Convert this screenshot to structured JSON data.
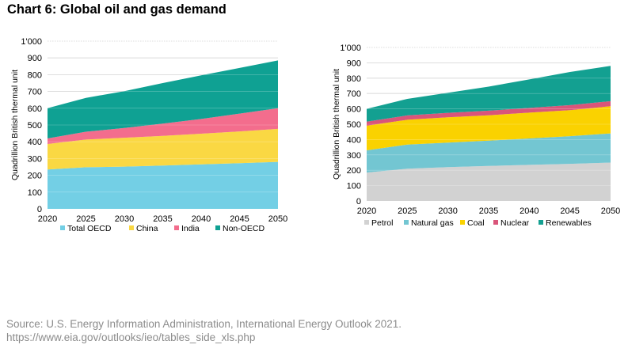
{
  "page_title": "Chart 6: Global oil and gas demand",
  "source": {
    "line1": "Source: U.S. Energy Information Administration, International Energy Outlook 2021.",
    "line2": "https://www.eia.gov/outlooks/ieo/tables_side_xls.php"
  },
  "chart_data": [
    {
      "type": "area",
      "stacked": true,
      "title": "",
      "xlabel": "",
      "ylabel": "Quadrillion British thermal unit",
      "categories": [
        "2020",
        "2025",
        "2030",
        "2035",
        "2040",
        "2045",
        "2050"
      ],
      "ylim": [
        0,
        1000
      ],
      "yticks": [
        "0",
        "100",
        "200",
        "300",
        "400",
        "500",
        "600",
        "700",
        "800",
        "900",
        "1'000"
      ],
      "grid": true,
      "legend": "bottom",
      "series": [
        {
          "name": "Total OECD",
          "color": "#73CFE5",
          "values": [
            235,
            248,
            252,
            258,
            265,
            272,
            280
          ]
        },
        {
          "name": "China",
          "color": "#FAD843",
          "values": [
            152,
            165,
            172,
            177,
            183,
            190,
            197
          ]
        },
        {
          "name": "India",
          "color": "#F36D8D",
          "values": [
            33,
            47,
            58,
            73,
            88,
            106,
            123
          ]
        },
        {
          "name": "Non-OECD",
          "color": "#0FA193",
          "values": [
            180,
            202,
            220,
            242,
            260,
            272,
            285
          ]
        }
      ]
    },
    {
      "type": "area",
      "stacked": true,
      "title": "",
      "xlabel": "",
      "ylabel": "Quadrillion British thermal unit",
      "categories": [
        "2020",
        "2025",
        "2030",
        "2035",
        "2040",
        "2045",
        "2050"
      ],
      "ylim": [
        0,
        1000
      ],
      "yticks": [
        "0",
        "100",
        "200",
        "300",
        "400",
        "500",
        "600",
        "700",
        "800",
        "900",
        "1'000"
      ],
      "grid": true,
      "legend": "bottom",
      "series": [
        {
          "name": "Petrol",
          "color": "#D2D2D2",
          "values": [
            185,
            210,
            220,
            228,
            235,
            242,
            250
          ]
        },
        {
          "name": "Natural gas",
          "color": "#73C6D2",
          "values": [
            145,
            157,
            160,
            165,
            172,
            180,
            190
          ]
        },
        {
          "name": "Coal",
          "color": "#FAD200",
          "values": [
            160,
            162,
            165,
            165,
            168,
            170,
            177
          ]
        },
        {
          "name": "Nuclear",
          "color": "#D9557A",
          "values": [
            27,
            28,
            29,
            30,
            31,
            32,
            33
          ]
        },
        {
          "name": "Renewables",
          "color": "#13A091",
          "values": [
            83,
            108,
            131,
            157,
            186,
            216,
            230
          ]
        }
      ]
    }
  ]
}
